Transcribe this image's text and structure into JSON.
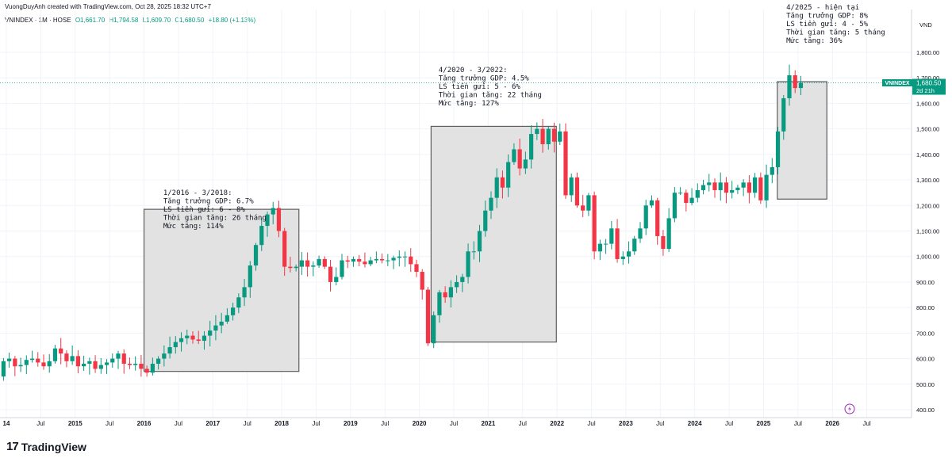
{
  "header": {
    "credit": "VuongDuyAnh created with TradingView.com, Oct 28, 2025 18:32 UTC+7"
  },
  "legend": {
    "symbol": "VNINDEX · 1M · HOSE",
    "open": "O1,661.70",
    "high": "H1,794.58",
    "low": "L1,609.70",
    "close": "C1,680.50",
    "change": "+18.80 (+1.13%)"
  },
  "price_tag": {
    "symbol": "VNINDEX",
    "value": "1,680.50",
    "countdown": "2d 21h"
  },
  "currency": "VND",
  "brand": "TradingView",
  "colors": {
    "up": "#089981",
    "down": "#F23645",
    "box_fill": "#E2E2E2",
    "box_stroke": "#5D5D5D",
    "price_tag": "#089981"
  },
  "chart_data": {
    "type": "candlestick",
    "title": "VNINDEX · 1M · HOSE",
    "y_unit": "VND",
    "ylim": [
      390,
      1890
    ],
    "y_ticks": [
      400,
      500,
      600,
      700,
      800,
      900,
      1000,
      1100,
      1200,
      1300,
      1400,
      1500,
      1600,
      1700,
      1800
    ],
    "y_tick_labels": [
      "400.00",
      "500.00",
      "600.00",
      "700.00",
      "800.00",
      "900.00",
      "1,000.00",
      "1,100.00",
      "1,200.00",
      "1,300.00",
      "1,400.00",
      "1,500.00",
      "1,600.00",
      "1,700.00",
      "1,800.00"
    ],
    "x_ticks": [
      {
        "label": "14",
        "bold": true,
        "t": 2014.0
      },
      {
        "label": "Jul",
        "bold": false,
        "t": 2014.5
      },
      {
        "label": "2015",
        "bold": true,
        "t": 2015.0
      },
      {
        "label": "Jul",
        "bold": false,
        "t": 2015.5
      },
      {
        "label": "2016",
        "bold": true,
        "t": 2016.0
      },
      {
        "label": "Jul",
        "bold": false,
        "t": 2016.5
      },
      {
        "label": "2017",
        "bold": true,
        "t": 2017.0
      },
      {
        "label": "Jul",
        "bold": false,
        "t": 2017.5
      },
      {
        "label": "2018",
        "bold": true,
        "t": 2018.0
      },
      {
        "label": "Jul",
        "bold": false,
        "t": 2018.5
      },
      {
        "label": "2019",
        "bold": true,
        "t": 2019.0
      },
      {
        "label": "Jul",
        "bold": false,
        "t": 2019.5
      },
      {
        "label": "2020",
        "bold": true,
        "t": 2020.0
      },
      {
        "label": "Jul",
        "bold": false,
        "t": 2020.5
      },
      {
        "label": "2021",
        "bold": true,
        "t": 2021.0
      },
      {
        "label": "Jul",
        "bold": false,
        "t": 2021.5
      },
      {
        "label": "2022",
        "bold": true,
        "t": 2022.0
      },
      {
        "label": "Jul",
        "bold": false,
        "t": 2022.5
      },
      {
        "label": "2023",
        "bold": true,
        "t": 2023.0
      },
      {
        "label": "Jul",
        "bold": false,
        "t": 2023.5
      },
      {
        "label": "2024",
        "bold": true,
        "t": 2024.0
      },
      {
        "label": "Jul",
        "bold": false,
        "t": 2024.5
      },
      {
        "label": "2025",
        "bold": true,
        "t": 2025.0
      },
      {
        "label": "Jul",
        "bold": false,
        "t": 2025.5
      },
      {
        "label": "2026",
        "bold": true,
        "t": 2026.0
      },
      {
        "label": "Jul",
        "bold": false,
        "t": 2026.5
      }
    ],
    "x_range": [
      2014.0,
      2027.15
    ],
    "last_price": 1680.5,
    "start_month": "2013-11",
    "closes": [
      530,
      590,
      600,
      570,
      575,
      595,
      600,
      585,
      570,
      590,
      640,
      620,
      590,
      610,
      570,
      580,
      590,
      560,
      575,
      585,
      600,
      620,
      580,
      575,
      580,
      560,
      545,
      580,
      600,
      620,
      645,
      665,
      680,
      690,
      675,
      670,
      690,
      710,
      730,
      745,
      770,
      800,
      840,
      880,
      965,
      1045,
      1120,
      1165,
      1190,
      1100,
      960,
      955,
      960,
      985,
      960,
      965,
      990,
      960,
      900,
      920,
      985,
      980,
      990,
      980,
      970,
      985,
      990,
      985,
      985,
      995,
      1000,
      1000,
      970,
      940,
      870,
      660,
      770,
      860,
      840,
      880,
      900,
      920,
      1020,
      1020,
      1100,
      1180,
      1230,
      1310,
      1270,
      1370,
      1420,
      1345,
      1380,
      1480,
      1500,
      1440,
      1500,
      1450,
      1490,
      1240,
      1310,
      1200,
      1180,
      1240,
      1020,
      1050,
      1050,
      1110,
      990,
      1000,
      1020,
      1070,
      1110,
      1200,
      1220,
      1080,
      1030,
      1150,
      1250,
      1250,
      1210,
      1230,
      1260,
      1280,
      1290,
      1260,
      1290,
      1250,
      1260,
      1270,
      1290,
      1250,
      1310,
      1220,
      1320,
      1350,
      1490,
      1620,
      1710,
      1660,
      1680
    ]
  },
  "annotations": [
    {
      "id": "box-2016",
      "lines": [
        "1/2016 - 3/2018:",
        "Tăng trưởng GDP: 6.7%",
        "LS tiền gửi: 6 - 8%",
        "Thời gian tăng: 26 tháng",
        "Mức tăng: 114%"
      ]
    },
    {
      "id": "box-2020",
      "lines": [
        "4/2020 - 3/2022:",
        "Tăng trưởng GDP: 4.5%",
        "LS tiền gửi: 5 - 6%",
        "Thời gian tăng: 22 tháng",
        "Mức tăng: 127%"
      ]
    },
    {
      "id": "box-2025",
      "lines": [
        "4/2025 - hiện tại",
        "Tăng trưởng GDP: 8%",
        "LS tiền gửi: 4 - 5%",
        "Thời gian tăng: 5 tháng",
        "Mức tăng: 36%"
      ]
    }
  ]
}
